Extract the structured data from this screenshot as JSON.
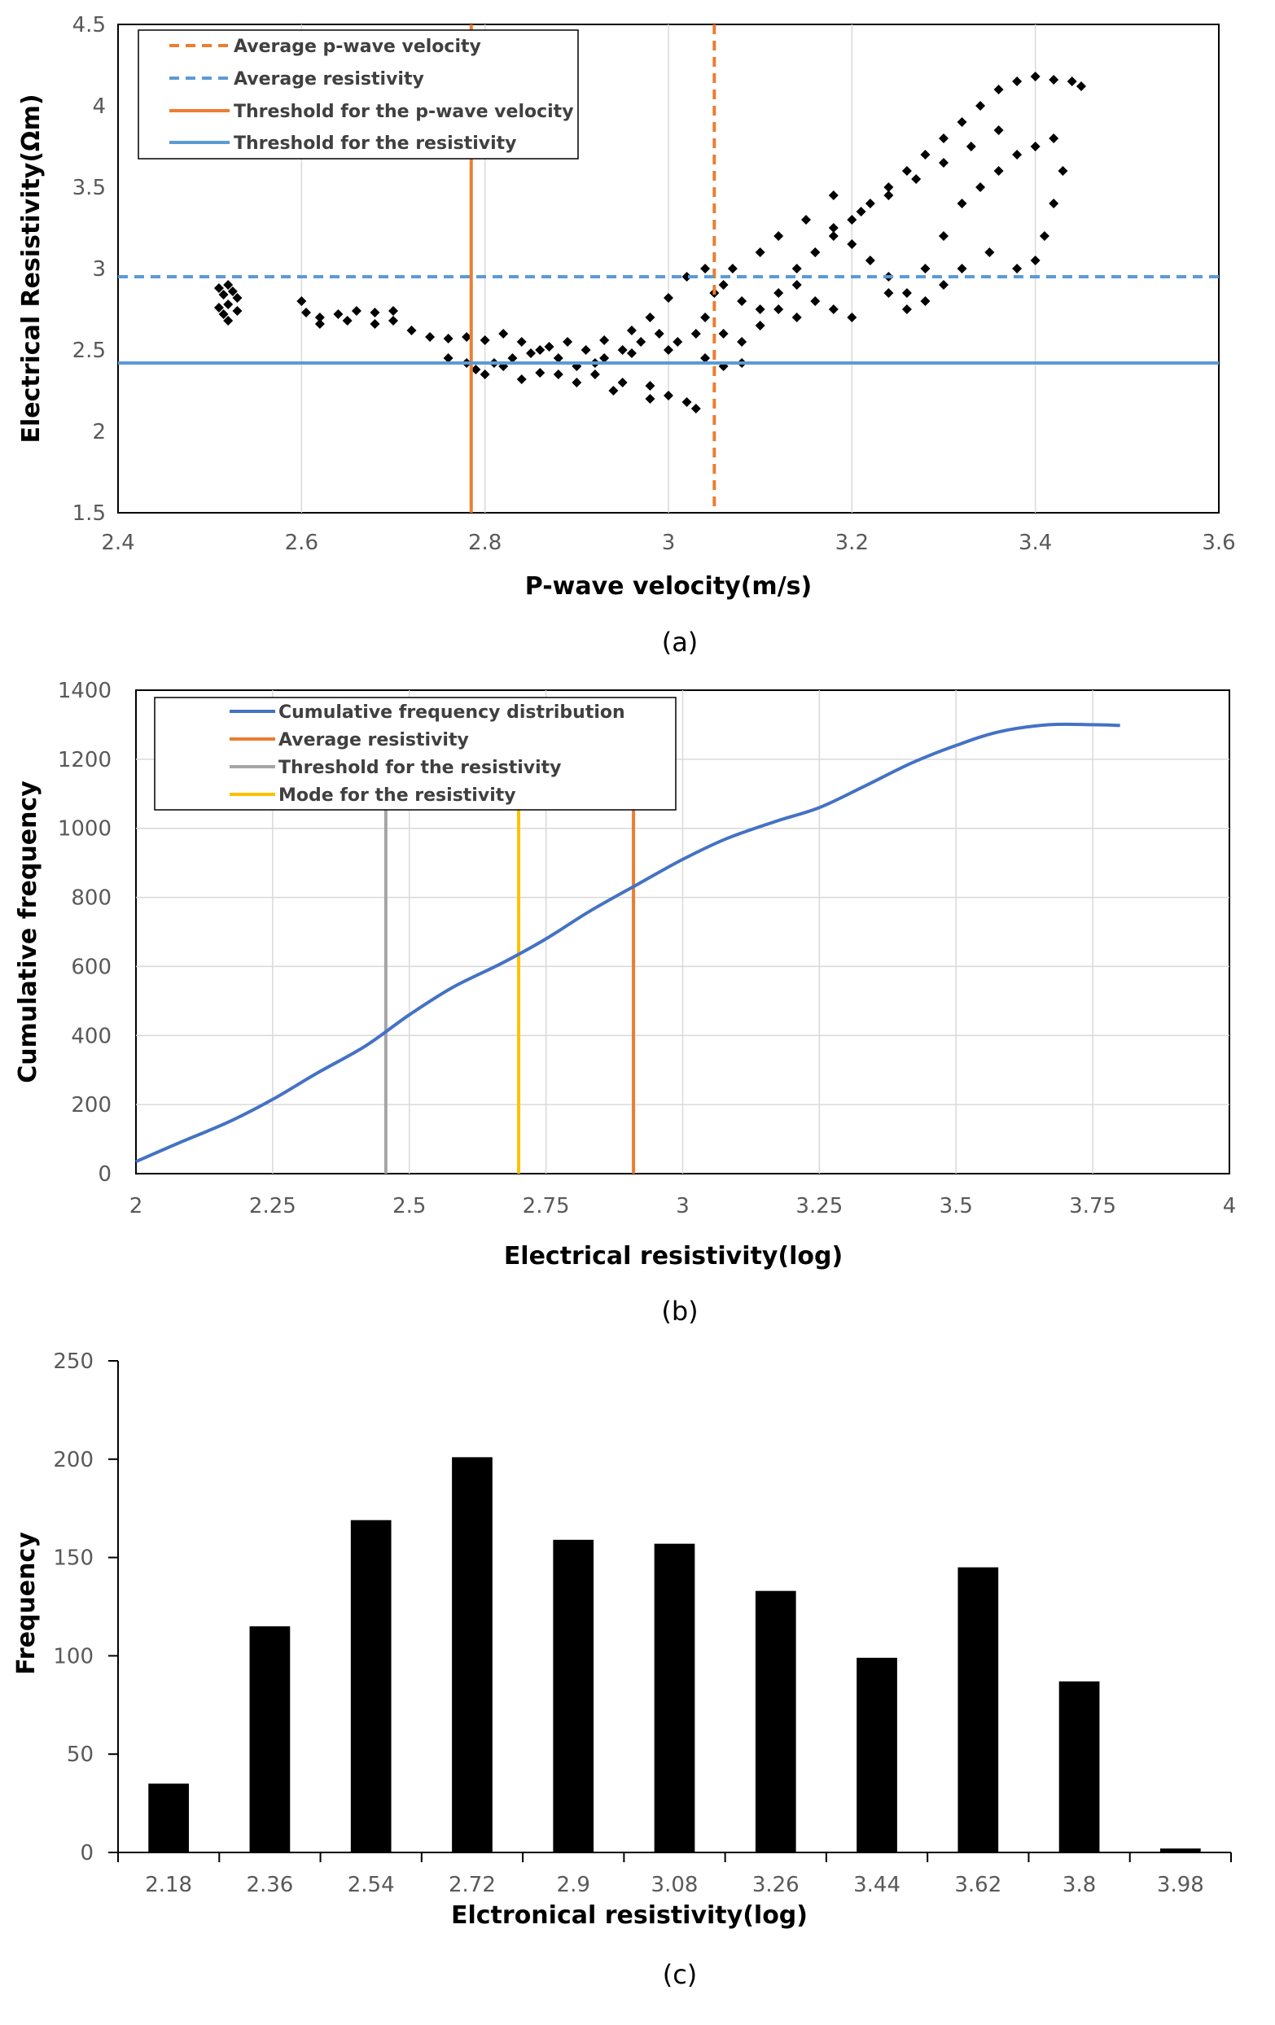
{
  "figure": {
    "captions": [
      "(a)",
      "(b)",
      "(c)"
    ]
  },
  "chart_data": [
    {
      "type": "scatter",
      "title": "",
      "xlabel": "P-wave velocity(m/s)",
      "ylabel": "Electrical Resistivity(Ωm)",
      "xlim": [
        2.4,
        3.6
      ],
      "ylim": [
        1.5,
        4.5
      ],
      "x_ticks": [
        "2.4",
        "2.6",
        "2.8",
        "3",
        "3.2",
        "3.4",
        "3.6"
      ],
      "y_ticks": [
        "1.5",
        "2",
        "2.5",
        "3",
        "3.5",
        "4",
        "4.5"
      ],
      "grid": "vertical",
      "legend_position": "top-left",
      "legend": [
        {
          "label": "Average p-wave velocity",
          "color": "#ED7D31",
          "style": "dashed"
        },
        {
          "label": "Average resistivity",
          "color": "#5B9BD5",
          "style": "dashed"
        },
        {
          "label": "Threshold for the p-wave velocity",
          "color": "#ED7D31",
          "style": "solid"
        },
        {
          "label": "Threshold for the resistivity",
          "color": "#5B9BD5",
          "style": "solid"
        }
      ],
      "reference_lines": {
        "avg_pwave_velocity_x": 3.05,
        "avg_resistivity_y": 2.95,
        "threshold_pwave_velocity_x": 2.785,
        "threshold_resistivity_y": 2.42
      },
      "marker_color": "#000000",
      "series": [
        {
          "points": [
            [
              2.51,
              2.88
            ],
            [
              2.515,
              2.84
            ],
            [
              2.52,
              2.78
            ],
            [
              2.515,
              2.72
            ],
            [
              2.52,
              2.68
            ],
            [
              2.525,
              2.86
            ],
            [
              2.53,
              2.82
            ],
            [
              2.51,
              2.76
            ],
            [
              2.52,
              2.9
            ],
            [
              2.53,
              2.74
            ],
            [
              2.6,
              2.8
            ],
            [
              2.605,
              2.73
            ],
            [
              2.62,
              2.7
            ],
            [
              2.64,
              2.72
            ],
            [
              2.66,
              2.74
            ],
            [
              2.68,
              2.73
            ],
            [
              2.7,
              2.74
            ],
            [
              2.7,
              2.68
            ],
            [
              2.72,
              2.62
            ],
            [
              2.68,
              2.66
            ],
            [
              2.65,
              2.68
            ],
            [
              2.62,
              2.66
            ],
            [
              2.74,
              2.58
            ],
            [
              2.76,
              2.57
            ],
            [
              2.78,
              2.58
            ],
            [
              2.8,
              2.56
            ],
            [
              2.82,
              2.6
            ],
            [
              2.84,
              2.55
            ],
            [
              2.86,
              2.5
            ],
            [
              2.88,
              2.45
            ],
            [
              2.9,
              2.4
            ],
            [
              2.92,
              2.35
            ],
            [
              2.95,
              2.3
            ],
            [
              2.98,
              2.28
            ],
            [
              3.0,
              2.22
            ],
            [
              3.02,
              2.18
            ],
            [
              3.03,
              2.14
            ],
            [
              2.98,
              2.2
            ],
            [
              2.94,
              2.25
            ],
            [
              2.9,
              2.3
            ],
            [
              2.86,
              2.36
            ],
            [
              2.82,
              2.4
            ],
            [
              2.78,
              2.42
            ],
            [
              2.76,
              2.45
            ],
            [
              2.8,
              2.35
            ],
            [
              2.84,
              2.32
            ],
            [
              2.88,
              2.35
            ],
            [
              2.92,
              2.42
            ],
            [
              2.96,
              2.48
            ],
            [
              3.0,
              2.5
            ],
            [
              3.04,
              2.45
            ],
            [
              3.06,
              2.4
            ],
            [
              3.08,
              2.42
            ],
            [
              2.93,
              2.56
            ],
            [
              2.96,
              2.62
            ],
            [
              2.98,
              2.7
            ],
            [
              3.0,
              2.82
            ],
            [
              3.02,
              2.95
            ],
            [
              3.04,
              3.0
            ],
            [
              3.06,
              2.9
            ],
            [
              3.08,
              2.8
            ],
            [
              3.1,
              2.75
            ],
            [
              3.12,
              2.85
            ],
            [
              3.14,
              3.0
            ],
            [
              3.16,
              3.1
            ],
            [
              3.18,
              3.2
            ],
            [
              3.2,
              3.3
            ],
            [
              3.22,
              3.4
            ],
            [
              3.24,
              3.5
            ],
            [
              3.26,
              3.6
            ],
            [
              3.28,
              3.7
            ],
            [
              3.3,
              3.8
            ],
            [
              3.32,
              3.9
            ],
            [
              3.34,
              4.0
            ],
            [
              3.36,
              4.1
            ],
            [
              3.38,
              4.15
            ],
            [
              3.4,
              4.18
            ],
            [
              3.42,
              4.16
            ],
            [
              3.44,
              4.15
            ],
            [
              3.45,
              4.12
            ],
            [
              3.42,
              3.8
            ],
            [
              3.4,
              3.75
            ],
            [
              3.38,
              3.7
            ],
            [
              3.36,
              3.6
            ],
            [
              3.34,
              3.5
            ],
            [
              3.32,
              3.4
            ],
            [
              3.3,
              3.2
            ],
            [
              3.28,
              3.0
            ],
            [
              3.26,
              2.85
            ],
            [
              3.24,
              2.95
            ],
            [
              3.22,
              3.05
            ],
            [
              3.2,
              3.15
            ],
            [
              3.18,
              3.25
            ],
            [
              3.16,
              3.1
            ],
            [
              3.14,
              2.9
            ],
            [
              3.12,
              2.75
            ],
            [
              3.1,
              2.65
            ],
            [
              3.08,
              2.55
            ],
            [
              3.06,
              2.6
            ],
            [
              3.04,
              2.7
            ],
            [
              3.2,
              2.7
            ],
            [
              3.18,
              2.75
            ],
            [
              3.16,
              2.8
            ],
            [
              3.14,
              2.7
            ],
            [
              3.24,
              2.85
            ],
            [
              3.26,
              2.75
            ],
            [
              3.28,
              2.8
            ],
            [
              3.3,
              2.9
            ],
            [
              3.32,
              3.0
            ],
            [
              3.35,
              3.1
            ],
            [
              3.38,
              3.0
            ],
            [
              3.4,
              3.05
            ],
            [
              3.41,
              3.2
            ],
            [
              3.42,
              3.4
            ],
            [
              3.43,
              3.6
            ],
            [
              3.36,
              3.85
            ],
            [
              3.33,
              3.75
            ],
            [
              3.3,
              3.65
            ],
            [
              3.27,
              3.55
            ],
            [
              3.24,
              3.45
            ],
            [
              3.21,
              3.35
            ],
            [
              3.18,
              3.45
            ],
            [
              3.15,
              3.3
            ],
            [
              3.12,
              3.2
            ],
            [
              3.1,
              3.1
            ],
            [
              3.07,
              3.0
            ],
            [
              3.05,
              2.85
            ],
            [
              3.03,
              2.6
            ],
            [
              3.01,
              2.55
            ],
            [
              2.99,
              2.6
            ],
            [
              2.97,
              2.55
            ],
            [
              2.95,
              2.5
            ],
            [
              2.93,
              2.45
            ],
            [
              2.91,
              2.5
            ],
            [
              2.89,
              2.55
            ],
            [
              2.87,
              2.52
            ],
            [
              2.85,
              2.48
            ],
            [
              2.83,
              2.45
            ],
            [
              2.81,
              2.42
            ],
            [
              2.79,
              2.38
            ]
          ]
        }
      ]
    },
    {
      "type": "line",
      "title": "",
      "xlabel": "Electrical resistivity(log)",
      "ylabel": "Cumulative frequency",
      "xlim": [
        2,
        4
      ],
      "ylim": [
        0,
        1400
      ],
      "x_ticks": [
        "2",
        "2.25",
        "2.5",
        "2.75",
        "3",
        "3.25",
        "3.5",
        "3.75",
        "4"
      ],
      "y_ticks": [
        "0",
        "200",
        "400",
        "600",
        "800",
        "1000",
        "1200",
        "1400"
      ],
      "grid": "both",
      "legend_position": "top-left",
      "legend": [
        {
          "label": "Cumulative frequency distribution",
          "color": "#4472C4"
        },
        {
          "label": "Average resistivity",
          "color": "#ED7D31"
        },
        {
          "label": "Threshold for the resistivity",
          "color": "#A5A5A5"
        },
        {
          "label": "Mode for the resistivity",
          "color": "#FFC000"
        }
      ],
      "reference_lines": {
        "average_resistivity_x": 2.91,
        "threshold_resistivity_x": 2.457,
        "mode_resistivity_x": 2.7
      },
      "series": [
        {
          "name": "Cumulative frequency distribution",
          "x": [
            2.0,
            2.08,
            2.17,
            2.25,
            2.33,
            2.42,
            2.5,
            2.58,
            2.67,
            2.75,
            2.83,
            2.92,
            3.0,
            3.08,
            3.17,
            3.25,
            3.33,
            3.42,
            3.5,
            3.58,
            3.67,
            3.75,
            3.8
          ],
          "y": [
            35,
            90,
            150,
            215,
            290,
            370,
            460,
            540,
            610,
            680,
            760,
            840,
            910,
            970,
            1020,
            1060,
            1120,
            1190,
            1240,
            1280,
            1300,
            1300,
            1298
          ]
        }
      ]
    },
    {
      "type": "bar",
      "title": "",
      "xlabel": "Elctronical resistivity(log)",
      "ylabel": "Frequency",
      "ylim": [
        0,
        250
      ],
      "y_ticks": [
        "0",
        "50",
        "100",
        "150",
        "200",
        "250"
      ],
      "categories": [
        "2.18",
        "2.36",
        "2.54",
        "2.72",
        "2.9",
        "3.08",
        "3.26",
        "3.44",
        "3.62",
        "3.8",
        "3.98"
      ],
      "values": [
        35,
        115,
        169,
        201,
        159,
        157,
        133,
        99,
        145,
        87,
        2
      ],
      "bar_color": "#000000"
    }
  ]
}
